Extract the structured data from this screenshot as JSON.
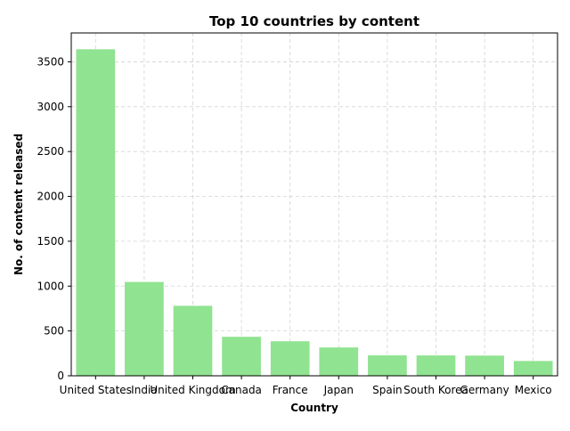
{
  "chart_data": {
    "type": "bar",
    "title": "Top 10 countries by content",
    "xlabel": "Country",
    "ylabel": "No. of content released",
    "categories": [
      "United States",
      "India",
      "United Kingdom",
      "Canada",
      "France",
      "Japan",
      "Spain",
      "South Korea",
      "Germany",
      "Mexico"
    ],
    "values": [
      3640,
      1046,
      780,
      435,
      385,
      316,
      228,
      227,
      225,
      165
    ],
    "ylim": [
      0,
      3822
    ],
    "yticks": [
      0,
      500,
      1000,
      1500,
      2000,
      2500,
      3000,
      3500
    ],
    "grid": true,
    "bar_color": "#90e390"
  }
}
